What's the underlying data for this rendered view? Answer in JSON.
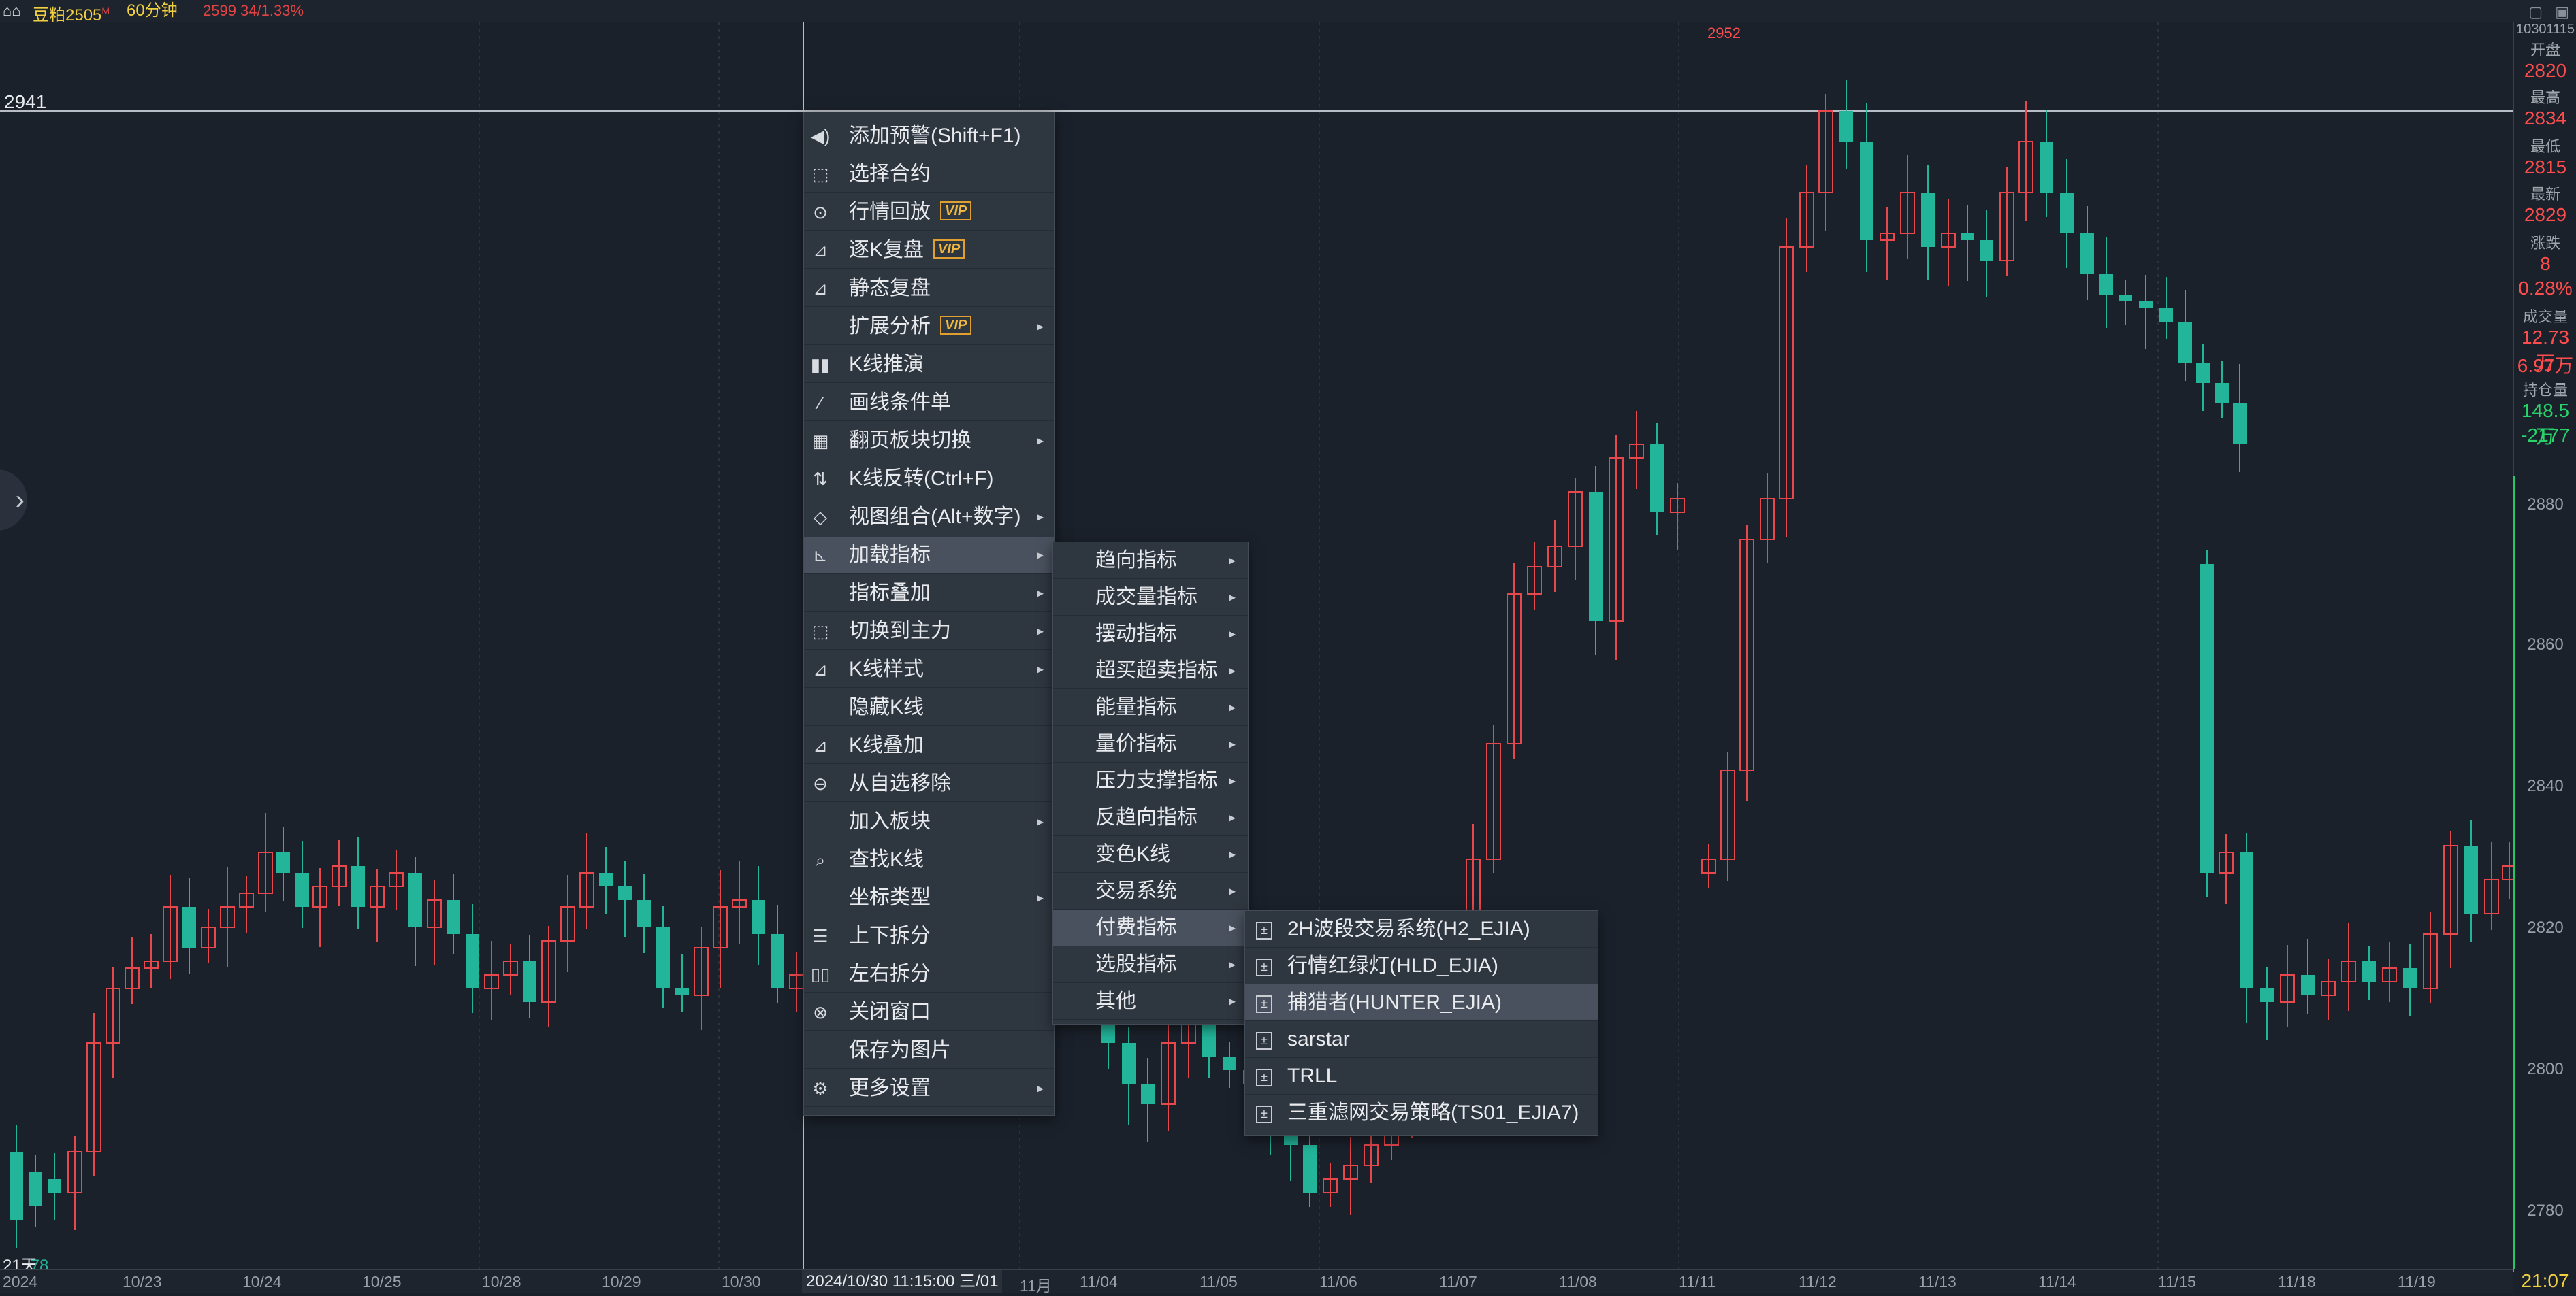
{
  "top_bar": {
    "symbol": "豆粕2505",
    "symbol_suffix": "M",
    "period": "60分钟",
    "quote": "2599  34/1.33%"
  },
  "chart": {
    "crosshair_price": "2941",
    "high_marker": "2952",
    "days_label": "21天",
    "days_value": "78",
    "crosshair_time": "2024/10/30 11:15:00 三/01",
    "x_ticks": [
      "2024",
      "10/23",
      "10/24",
      "10/25",
      "10/28",
      "10/29",
      "10/30",
      "11月",
      "11/04",
      "11/05",
      "11/06",
      "11/07",
      "11/08",
      "11/11",
      "11/12",
      "11/13",
      "11/14",
      "11/15",
      "11/18",
      "11/19"
    ],
    "y_ticks": [
      "2880",
      "2860",
      "2840",
      "2820",
      "2800",
      "2780"
    ],
    "colors": {
      "up": "#e8474c",
      "down": "#22b59a",
      "background": "#1b212b"
    }
  },
  "right_panel": {
    "top_code": "10301115",
    "open_label": "开盘",
    "open_value": "2820",
    "high_label": "最高",
    "high_value": "2834",
    "low_label": "最低",
    "low_value": "2815",
    "last_label": "最新",
    "last_value": "2829",
    "change_label": "涨跌",
    "change_value": "8",
    "change_pct": "0.28%",
    "volume_label": "成交量",
    "volume_value1": "12.73万",
    "volume_value2": "6.97万",
    "oi_label": "持仓量",
    "oi_value1": "148.5万",
    "oi_value2": "-2177",
    "time": "21:07"
  },
  "context_menu": [
    {
      "icon": "speaker-icon",
      "glyph": "◀)",
      "label": "添加预警(Shift+F1)"
    },
    {
      "icon": "select-contract-icon",
      "glyph": "⬚",
      "label": "选择合约"
    },
    {
      "icon": "replay-icon",
      "glyph": "⊙",
      "label": "行情回放",
      "vip": "VIP"
    },
    {
      "icon": "chart-review-icon",
      "glyph": "⊿",
      "label": "逐K复盘",
      "vip": "VIP"
    },
    {
      "icon": "static-review-icon",
      "glyph": "⊿",
      "label": "静态复盘"
    },
    {
      "icon": "",
      "glyph": "",
      "label": "扩展分析",
      "vip": "VIP",
      "submenu": true
    },
    {
      "icon": "kline-sim-icon",
      "glyph": "▮▮",
      "label": "K线推演"
    },
    {
      "icon": "draw-condition-icon",
      "glyph": "⁄",
      "label": "画线条件单"
    },
    {
      "icon": "grid-icon",
      "glyph": "▦",
      "label": "翻页板块切换",
      "submenu": true
    },
    {
      "icon": "flip-icon",
      "glyph": "⇅",
      "label": "K线反转(Ctrl+F)"
    },
    {
      "icon": "view-combo-icon",
      "glyph": "◇",
      "label": "视图组合(Alt+数字)",
      "submenu": true
    },
    {
      "icon": "load-indicator-icon",
      "glyph": "⊾",
      "label": "加载指标",
      "submenu": true,
      "highlighted": true
    },
    {
      "icon": "",
      "glyph": "",
      "label": "指标叠加",
      "submenu": true
    },
    {
      "icon": "switch-main-icon",
      "glyph": "⬚",
      "label": "切换到主力",
      "submenu": true
    },
    {
      "icon": "kline-style-icon",
      "glyph": "⊿",
      "label": "K线样式",
      "submenu": true
    },
    {
      "icon": "",
      "glyph": "",
      "label": "隐藏K线"
    },
    {
      "icon": "kline-overlay-icon",
      "glyph": "⊿",
      "label": "K线叠加"
    },
    {
      "icon": "remove-icon",
      "glyph": "⊖",
      "label": "从自选移除"
    },
    {
      "icon": "",
      "glyph": "",
      "label": "加入板块",
      "submenu": true
    },
    {
      "icon": "search-icon",
      "glyph": "⌕",
      "label": "查找K线"
    },
    {
      "icon": "",
      "glyph": "",
      "label": "坐标类型",
      "submenu": true
    },
    {
      "icon": "split-horizontal-icon",
      "glyph": "☰",
      "label": "上下拆分"
    },
    {
      "icon": "split-vertical-icon",
      "glyph": "▯▯",
      "label": "左右拆分"
    },
    {
      "icon": "close-icon",
      "glyph": "⊗",
      "label": "关闭窗口"
    },
    {
      "icon": "",
      "glyph": "",
      "label": "保存为图片"
    },
    {
      "icon": "gear-icon",
      "glyph": "⚙",
      "label": "更多设置",
      "submenu": true
    }
  ],
  "indicator_submenu": [
    {
      "label": "趋向指标"
    },
    {
      "label": "成交量指标"
    },
    {
      "label": "摆动指标"
    },
    {
      "label": "超买超卖指标"
    },
    {
      "label": "能量指标"
    },
    {
      "label": "量价指标"
    },
    {
      "label": "压力支撑指标"
    },
    {
      "label": "反趋向指标"
    },
    {
      "label": "变色K线"
    },
    {
      "label": "交易系统"
    },
    {
      "label": "付费指标",
      "highlighted": true
    },
    {
      "label": "选股指标"
    },
    {
      "label": "其他"
    }
  ],
  "paid_submenu": [
    {
      "label": "2H波段交易系统(H2_EJIA)"
    },
    {
      "label": "行情红绿灯(HLD_EJIA)"
    },
    {
      "label": "捕猎者(HUNTER_EJIA)",
      "highlighted": true
    },
    {
      "label": "sarstar"
    },
    {
      "label": "TRLL"
    },
    {
      "label": "三重滤网交易策略(TS01_EJIA7)"
    }
  ],
  "arrow_glyph": "▸",
  "left_arrow_glyph": "›",
  "window_buttons": "▢ ▣",
  "logo_glyph": "⌂⌂"
}
